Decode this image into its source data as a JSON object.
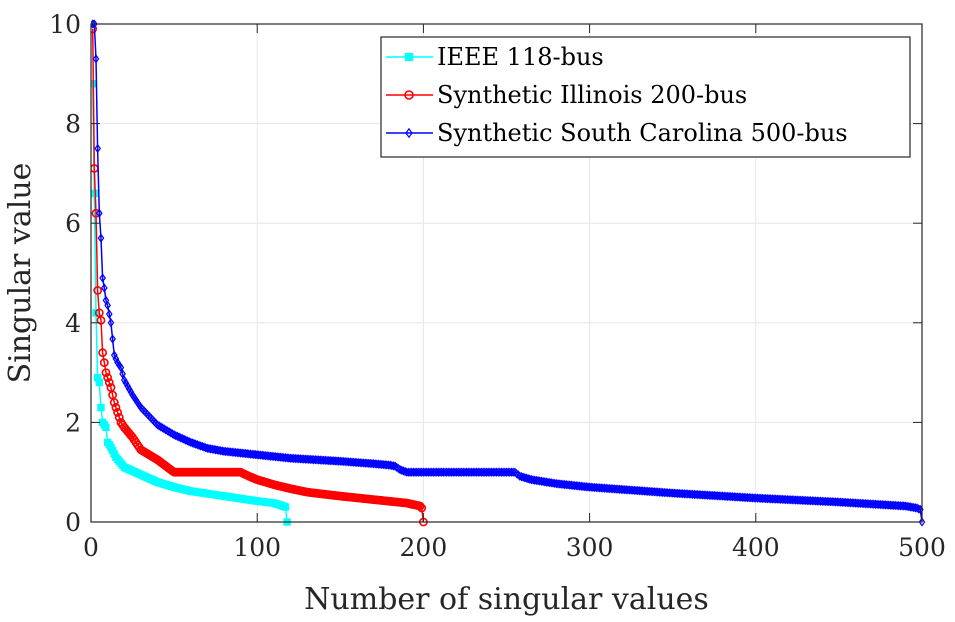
{
  "chart_data": {
    "type": "line",
    "xlabel": "Number of singular values",
    "ylabel": "Singular value",
    "xlim": [
      0,
      500
    ],
    "ylim": [
      0,
      10
    ],
    "xticks": [
      0,
      100,
      200,
      300,
      400,
      500
    ],
    "yticks": [
      0,
      2,
      4,
      6,
      8,
      10
    ],
    "grid": true,
    "legend_position": "top-right",
    "series": [
      {
        "name": "IEEE 118-bus",
        "color": "#00ffff",
        "marker": "square",
        "n": 118,
        "curve": [
          [
            1,
            8.8
          ],
          [
            2,
            6.6
          ],
          [
            3,
            4.2
          ],
          [
            4,
            2.9
          ],
          [
            5,
            2.8
          ],
          [
            6,
            2.3
          ],
          [
            7,
            2.0
          ],
          [
            9,
            1.9
          ],
          [
            10,
            1.6
          ],
          [
            12,
            1.5
          ],
          [
            15,
            1.3
          ],
          [
            20,
            1.1
          ],
          [
            30,
            0.95
          ],
          [
            40,
            0.8
          ],
          [
            50,
            0.7
          ],
          [
            60,
            0.62
          ],
          [
            70,
            0.57
          ],
          [
            80,
            0.52
          ],
          [
            90,
            0.47
          ],
          [
            100,
            0.42
          ],
          [
            110,
            0.38
          ],
          [
            115,
            0.33
          ],
          [
            117,
            0.3
          ],
          [
            118,
            0.0
          ]
        ]
      },
      {
        "name": "Synthetic Illinois 200-bus",
        "color": "#ff0000",
        "marker": "circle",
        "n": 200,
        "curve": [
          [
            1,
            9.9
          ],
          [
            2,
            7.1
          ],
          [
            3,
            6.2
          ],
          [
            4,
            4.65
          ],
          [
            5,
            4.2
          ],
          [
            6,
            4.05
          ],
          [
            7,
            3.4
          ],
          [
            8,
            3.2
          ],
          [
            9,
            3.0
          ],
          [
            10,
            2.9
          ],
          [
            12,
            2.7
          ],
          [
            14,
            2.4
          ],
          [
            16,
            2.2
          ],
          [
            18,
            2.0
          ],
          [
            20,
            1.9
          ],
          [
            25,
            1.7
          ],
          [
            30,
            1.45
          ],
          [
            40,
            1.25
          ],
          [
            48,
            1.05
          ],
          [
            50,
            1.0
          ],
          [
            90,
            1.0
          ],
          [
            95,
            0.92
          ],
          [
            100,
            0.85
          ],
          [
            110,
            0.75
          ],
          [
            120,
            0.67
          ],
          [
            130,
            0.6
          ],
          [
            150,
            0.52
          ],
          [
            170,
            0.45
          ],
          [
            190,
            0.38
          ],
          [
            198,
            0.32
          ],
          [
            199,
            0.28
          ],
          [
            200,
            0.0
          ]
        ]
      },
      {
        "name": "Synthetic South Carolina 500-bus",
        "color": "#0000ff",
        "marker": "diamond",
        "n": 500,
        "curve": [
          [
            1,
            10.0
          ],
          [
            2,
            10.0
          ],
          [
            3,
            9.3
          ],
          [
            4,
            7.5
          ],
          [
            5,
            6.2
          ],
          [
            6,
            5.7
          ],
          [
            7,
            4.9
          ],
          [
            8,
            4.7
          ],
          [
            9,
            4.45
          ],
          [
            10,
            4.35
          ],
          [
            12,
            4.0
          ],
          [
            14,
            3.35
          ],
          [
            16,
            3.2
          ],
          [
            18,
            3.1
          ],
          [
            20,
            2.85
          ],
          [
            25,
            2.55
          ],
          [
            30,
            2.3
          ],
          [
            40,
            1.95
          ],
          [
            50,
            1.75
          ],
          [
            60,
            1.6
          ],
          [
            70,
            1.48
          ],
          [
            80,
            1.42
          ],
          [
            100,
            1.35
          ],
          [
            120,
            1.28
          ],
          [
            150,
            1.22
          ],
          [
            170,
            1.17
          ],
          [
            180,
            1.14
          ],
          [
            183,
            1.12
          ],
          [
            186,
            1.05
          ],
          [
            190,
            1.0
          ],
          [
            255,
            1.0
          ],
          [
            258,
            0.92
          ],
          [
            265,
            0.85
          ],
          [
            280,
            0.77
          ],
          [
            300,
            0.7
          ],
          [
            350,
            0.58
          ],
          [
            400,
            0.48
          ],
          [
            450,
            0.4
          ],
          [
            490,
            0.32
          ],
          [
            497,
            0.28
          ],
          [
            499,
            0.25
          ],
          [
            500,
            0.0
          ]
        ]
      }
    ]
  }
}
